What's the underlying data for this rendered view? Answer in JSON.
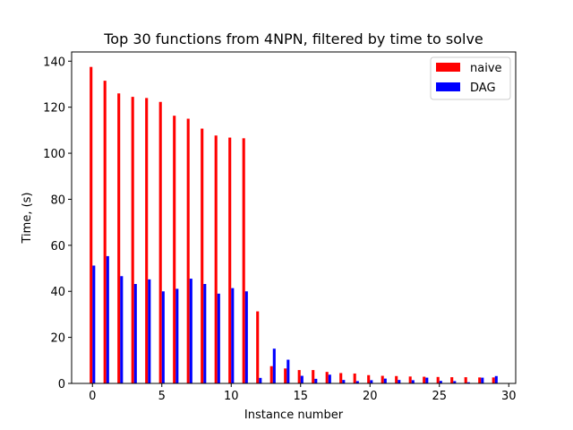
{
  "chart_data": {
    "type": "bar",
    "title": "Top 30 functions from 4NPN, filtered by time to solve",
    "xlabel": "Instance number",
    "ylabel": "Time, (s)",
    "xlim": [
      -1.5,
      30.5
    ],
    "ylim": [
      0,
      144
    ],
    "xticks": [
      0,
      5,
      10,
      15,
      20,
      25,
      30
    ],
    "yticks": [
      0,
      20,
      40,
      60,
      80,
      100,
      120,
      140
    ],
    "x": [
      0,
      1,
      2,
      3,
      4,
      5,
      6,
      7,
      8,
      9,
      10,
      11,
      12,
      13,
      14,
      15,
      16,
      17,
      18,
      19,
      20,
      21,
      22,
      23,
      24,
      25,
      26,
      27,
      28,
      29
    ],
    "legend_position": "upper right",
    "series": [
      {
        "name": "naive",
        "color": "#ff0000",
        "values": [
          137.5,
          131.5,
          126,
          124.5,
          124,
          122.3,
          116.3,
          115,
          110.7,
          107.7,
          106.8,
          106.5,
          31.3,
          7.5,
          6.5,
          5.8,
          5.8,
          5,
          4.5,
          4.3,
          3.6,
          3.3,
          3.2,
          3,
          2.9,
          2.8,
          2.7,
          2.7,
          2.6,
          2.6
        ]
      },
      {
        "name": "DAG",
        "color": "#0000ff",
        "values": [
          51.2,
          55.3,
          46.6,
          43.2,
          45.2,
          40,
          41.1,
          45.5,
          43.2,
          39,
          41.4,
          40,
          2.4,
          15.1,
          10.3,
          3.3,
          2,
          3.8,
          1.5,
          1,
          1.4,
          2.1,
          1.5,
          1.4,
          2.5,
          1.1,
          1,
          0.5,
          2.5,
          3.2
        ]
      }
    ]
  }
}
